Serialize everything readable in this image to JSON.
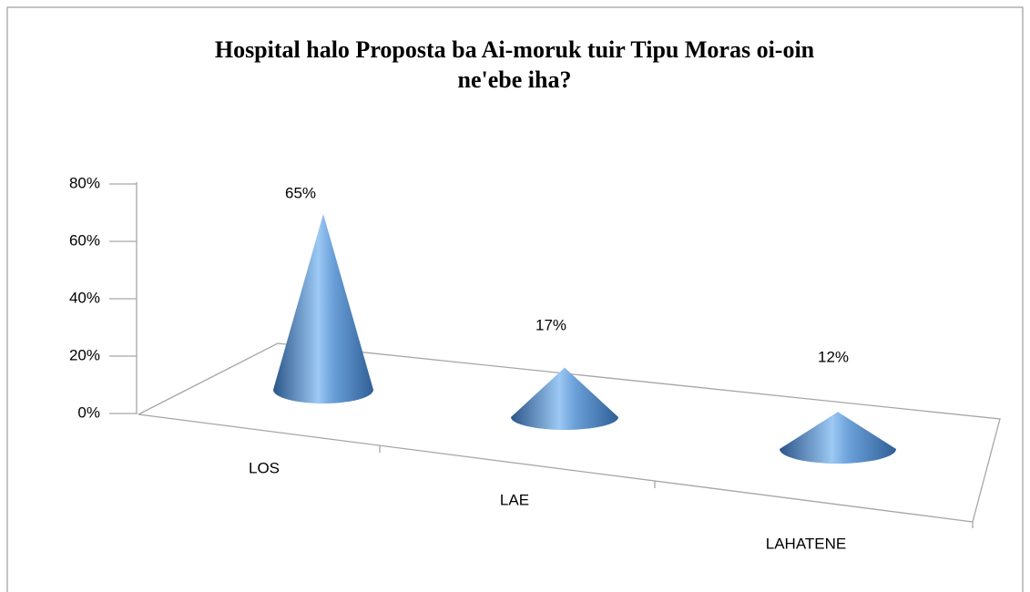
{
  "chart_data": {
    "type": "cone",
    "title": "Hospital halo Proposta ba Ai-moruk tuir Tipu Moras oi-oin ne'ebe iha?",
    "categories": [
      "LOS",
      "LAE",
      "LAHATENE"
    ],
    "values": [
      65,
      17,
      12
    ],
    "value_labels": [
      "65%",
      "17%",
      "12%"
    ],
    "color": "#4f81bd",
    "ylim": [
      0,
      80
    ],
    "yticks": [
      {
        "value": 0,
        "label": "0%"
      },
      {
        "value": 20,
        "label": "20%"
      },
      {
        "value": 40,
        "label": "40%"
      },
      {
        "value": 60,
        "label": "60%"
      },
      {
        "value": 80,
        "label": "80%"
      }
    ]
  }
}
